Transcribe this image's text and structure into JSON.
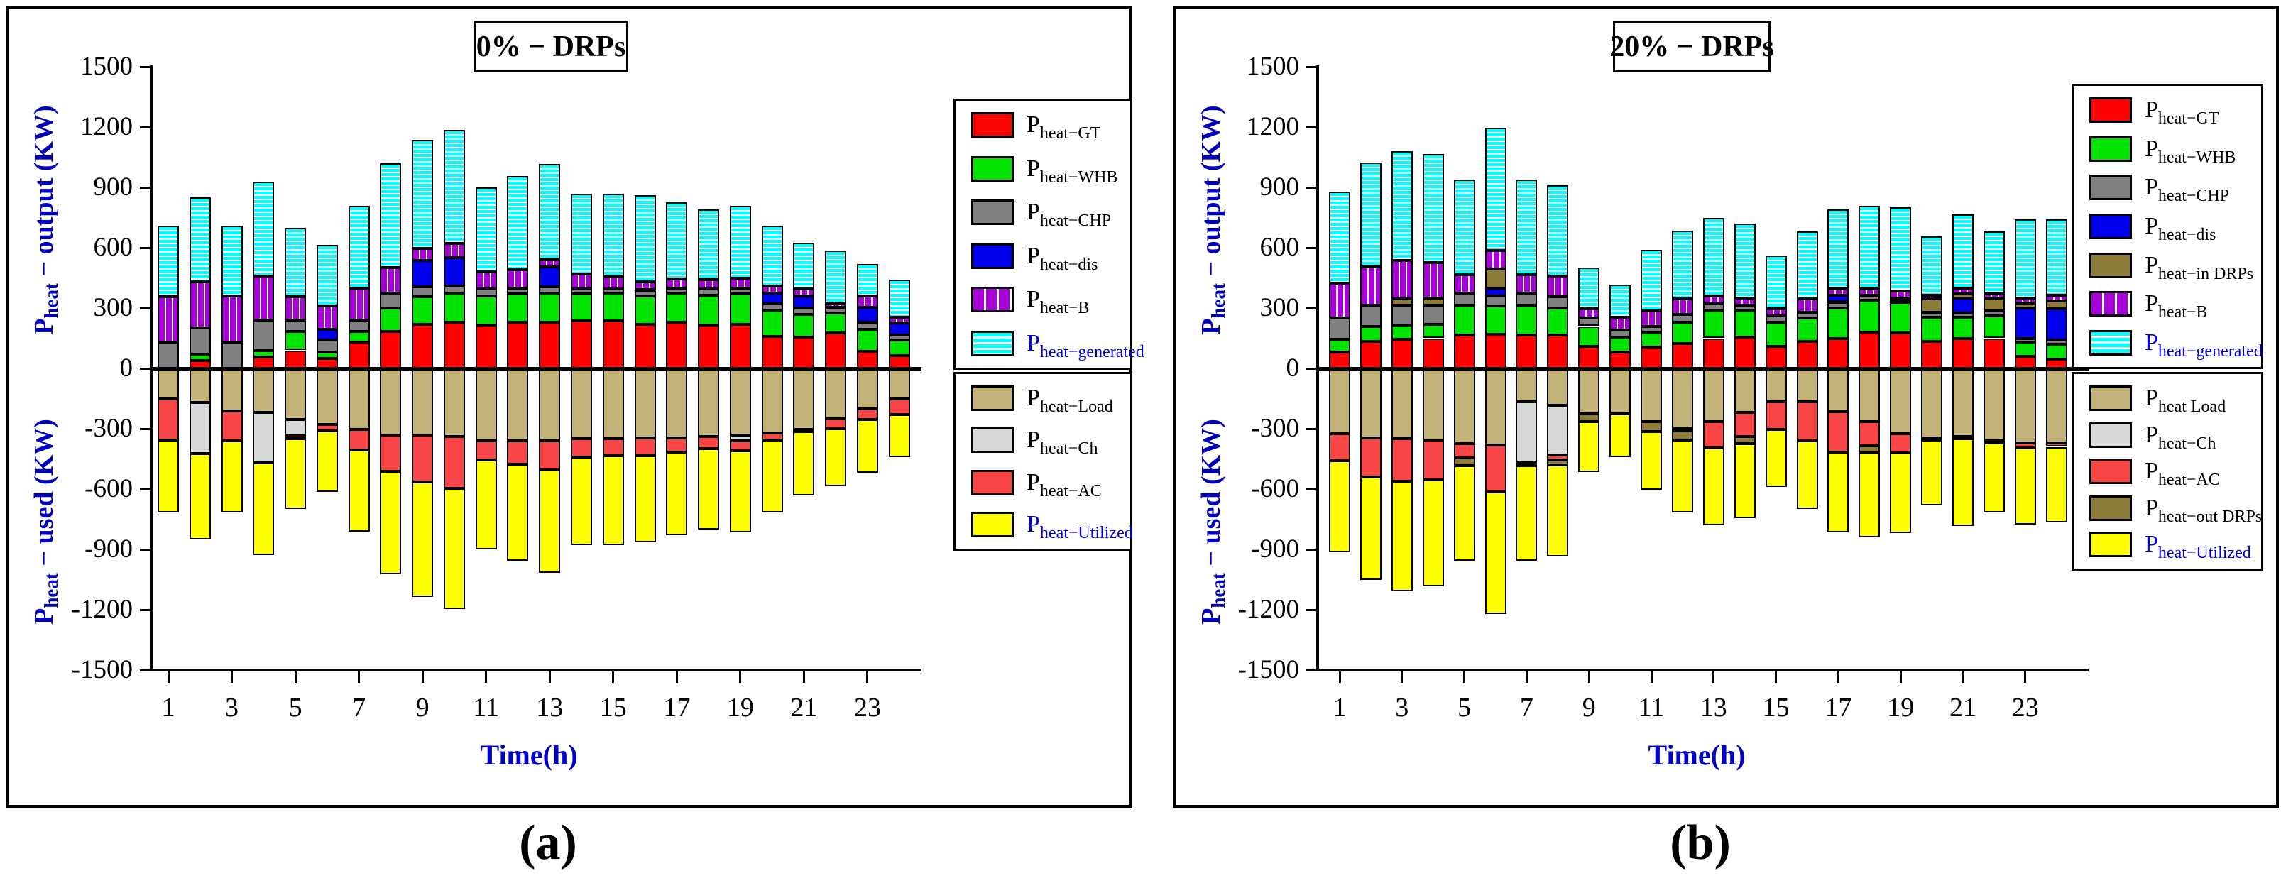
{
  "page": {
    "background": "#ffffff"
  },
  "chart_data": [
    {
      "id": "a",
      "type": "bar",
      "stacked": true,
      "title": {
        "text": "0% − DRP",
        "sub": "s"
      },
      "caption": "(a)",
      "xlabel": "Time(h)",
      "ylabel_output": {
        "main": "P",
        "sub": "heat",
        "rest": " − output (KW)"
      },
      "ylabel_used": {
        "main": "P",
        "sub": "heat",
        "rest": " − used (KW)"
      },
      "ylim": [
        -1500,
        1500
      ],
      "grid": false,
      "y_ticks": [
        1500,
        1200,
        900,
        600,
        300,
        0,
        -300,
        -600,
        -900,
        -1200,
        -1500
      ],
      "x_ticks": [
        1,
        3,
        5,
        7,
        9,
        11,
        13,
        15,
        17,
        19,
        21,
        23
      ],
      "hours": [
        1,
        2,
        3,
        4,
        5,
        6,
        7,
        8,
        9,
        10,
        11,
        12,
        13,
        14,
        15,
        16,
        17,
        18,
        19,
        20,
        21,
        22,
        23,
        24
      ],
      "positive_series": [
        {
          "key": "GT",
          "sub": "heat−GT",
          "color": "#ff0000",
          "pattern": "solid",
          "label_color": "#000000",
          "values": [
            0,
            40,
            0,
            55,
            90,
            50,
            130,
            185,
            220,
            230,
            215,
            230,
            230,
            235,
            235,
            220,
            230,
            215,
            220,
            160,
            155,
            175,
            85,
            65
          ]
        },
        {
          "key": "WHB",
          "sub": "heat−WHB",
          "color": "#00e400",
          "pattern": "solid",
          "label_color": "#000000",
          "values": [
            0,
            30,
            0,
            35,
            95,
            30,
            55,
            115,
            135,
            145,
            145,
            140,
            145,
            135,
            140,
            140,
            145,
            150,
            150,
            130,
            115,
            100,
            110,
            75
          ]
        },
        {
          "key": "CHP",
          "sub": "heat−CHP",
          "color": "#808080",
          "pattern": "solid",
          "label_color": "#000000",
          "values": [
            130,
            130,
            130,
            150,
            55,
            60,
            55,
            75,
            50,
            35,
            35,
            30,
            30,
            25,
            20,
            30,
            25,
            30,
            30,
            30,
            30,
            30,
            35,
            25
          ]
        },
        {
          "key": "dis",
          "sub": "heat−dis",
          "color": "#0000f0",
          "pattern": "solid",
          "label_color": "#000000",
          "values": [
            0,
            0,
            0,
            0,
            0,
            55,
            0,
            0,
            130,
            140,
            0,
            0,
            100,
            0,
            0,
            0,
            0,
            0,
            0,
            55,
            60,
            0,
            75,
            60
          ]
        },
        {
          "key": "B",
          "sub": "heat−B",
          "color": "#a800d8",
          "pattern": "vlines",
          "label_color": "#000000",
          "values": [
            225,
            230,
            230,
            220,
            115,
            115,
            160,
            125,
            60,
            70,
            85,
            90,
            35,
            75,
            60,
            40,
            45,
            45,
            50,
            35,
            35,
            15,
            55,
            30
          ]
        },
        {
          "key": "generated",
          "sub": "heat−generated",
          "color": "#00ffff",
          "pattern": "hlines",
          "label_color": "#0000dd",
          "values": [
            355,
            420,
            350,
            470,
            345,
            305,
            410,
            520,
            540,
            565,
            420,
            465,
            475,
            400,
            415,
            430,
            380,
            350,
            360,
            300,
            230,
            265,
            160,
            185
          ]
        }
      ],
      "negative_series": [
        {
          "key": "Load",
          "sub": "heat−Load",
          "color": "#c4b378",
          "pattern": "solid",
          "label_color": "#000000",
          "values": [
            -150,
            -170,
            -210,
            -220,
            -255,
            -280,
            -305,
            -330,
            -330,
            -340,
            -360,
            -360,
            -360,
            -350,
            -350,
            -345,
            -345,
            -340,
            -330,
            -320,
            -305,
            -250,
            -200,
            -150
          ]
        },
        {
          "key": "Ch",
          "sub": "heat−Ch",
          "color": "#d8d8d8",
          "pattern": "solid",
          "label_color": "#000000",
          "values": [
            0,
            -255,
            0,
            -250,
            -75,
            0,
            0,
            0,
            0,
            0,
            0,
            0,
            0,
            0,
            0,
            0,
            0,
            0,
            -30,
            0,
            0,
            0,
            0,
            0
          ]
        },
        {
          "key": "AC",
          "sub": "heat−AC",
          "color": "#f94545",
          "pattern": "solid",
          "label_color": "#000000",
          "values": [
            -205,
            0,
            -150,
            0,
            -20,
            -30,
            -100,
            -180,
            -235,
            -255,
            -95,
            -115,
            -145,
            -90,
            -85,
            -90,
            -70,
            -60,
            -50,
            -35,
            -10,
            -50,
            -55,
            -80
          ]
        },
        {
          "key": "Utilized",
          "sub": "heat−Utilized",
          "color": "#ffff00",
          "pattern": "solid",
          "label_color": "#0000dd",
          "values": [
            -360,
            -425,
            -355,
            -460,
            -350,
            -305,
            -405,
            -515,
            -570,
            -600,
            -445,
            -480,
            -510,
            -440,
            -445,
            -430,
            -415,
            -400,
            -405,
            -360,
            -315,
            -285,
            -265,
            -210
          ]
        }
      ]
    },
    {
      "id": "b",
      "type": "bar",
      "stacked": true,
      "title": {
        "text": "20% − DRP",
        "sub": "s"
      },
      "caption": "(b)",
      "xlabel": "Time(h)",
      "ylabel_output": {
        "main": "P",
        "sub": "heat",
        "rest": " − output (KW)"
      },
      "ylabel_used": {
        "main": "P",
        "sub": "heat",
        "rest": " − used (KW)"
      },
      "ylim": [
        -1500,
        1500
      ],
      "grid": false,
      "y_ticks": [
        1500,
        1200,
        900,
        600,
        300,
        0,
        -300,
        -600,
        -900,
        -1200,
        -1500
      ],
      "x_ticks": [
        1,
        3,
        5,
        7,
        9,
        11,
        13,
        15,
        17,
        19,
        21,
        23
      ],
      "hours": [
        1,
        2,
        3,
        4,
        5,
        6,
        7,
        8,
        9,
        10,
        11,
        12,
        13,
        14,
        15,
        16,
        17,
        18,
        19,
        20,
        21,
        22,
        23,
        24
      ],
      "positive_series": [
        {
          "key": "GT",
          "sub": "heat−GT",
          "color": "#ff0000",
          "pattern": "solid",
          "label_color": "#000000",
          "values": [
            80,
            135,
            145,
            150,
            165,
            170,
            165,
            165,
            110,
            80,
            105,
            125,
            150,
            155,
            110,
            135,
            150,
            180,
            175,
            135,
            150,
            150,
            60,
            45
          ]
        },
        {
          "key": "WHB",
          "sub": "heat−WHB",
          "color": "#00e400",
          "pattern": "solid",
          "label_color": "#000000",
          "values": [
            65,
            75,
            70,
            70,
            150,
            140,
            150,
            135,
            100,
            75,
            75,
            105,
            140,
            135,
            120,
            115,
            150,
            160,
            155,
            120,
            105,
            110,
            70,
            75
          ]
        },
        {
          "key": "CHP",
          "sub": "heat−CHP",
          "color": "#808080",
          "pattern": "solid",
          "label_color": "#000000",
          "values": [
            105,
            105,
            100,
            95,
            60,
            50,
            60,
            55,
            40,
            35,
            30,
            40,
            30,
            25,
            30,
            30,
            30,
            25,
            20,
            25,
            20,
            25,
            20,
            20
          ]
        },
        {
          "key": "dis",
          "sub": "heat−dis",
          "color": "#0000f0",
          "pattern": "solid",
          "label_color": "#000000",
          "values": [
            0,
            0,
            0,
            0,
            0,
            40,
            0,
            0,
            0,
            0,
            0,
            0,
            0,
            0,
            0,
            0,
            35,
            0,
            0,
            0,
            75,
            0,
            150,
            155
          ]
        },
        {
          "key": "inDRPs",
          "sub": "heat−in DRPs",
          "color": "#8e7d3a",
          "pattern": "solid",
          "label_color": "#000000",
          "values": [
            0,
            0,
            30,
            35,
            0,
            95,
            0,
            0,
            0,
            0,
            0,
            0,
            0,
            0,
            0,
            0,
            0,
            0,
            0,
            65,
            20,
            65,
            25,
            40
          ]
        },
        {
          "key": "B",
          "sub": "heat−B",
          "color": "#a800d8",
          "pattern": "vlines",
          "label_color": "#000000",
          "values": [
            175,
            190,
            190,
            175,
            90,
            90,
            90,
            105,
            45,
            65,
            75,
            75,
            40,
            35,
            35,
            65,
            30,
            30,
            35,
            20,
            30,
            20,
            25,
            30
          ]
        },
        {
          "key": "generated",
          "sub": "heat−generated",
          "color": "#00ffff",
          "pattern": "hlines",
          "label_color": "#0000dd",
          "values": [
            455,
            520,
            545,
            540,
            475,
            610,
            475,
            450,
            205,
            160,
            305,
            340,
            390,
            370,
            265,
            335,
            395,
            415,
            415,
            290,
            365,
            310,
            390,
            375
          ]
        }
      ],
      "negative_series": [
        {
          "key": "Load",
          "sub": "heat Load",
          "color": "#c4b378",
          "pattern": "solid",
          "label_color": "#000000",
          "values": [
            -325,
            -345,
            -350,
            -355,
            -375,
            -380,
            -165,
            -185,
            -225,
            -225,
            -265,
            -300,
            -265,
            -220,
            -165,
            -165,
            -215,
            -265,
            -325,
            -345,
            -340,
            -360,
            -370,
            -370
          ]
        },
        {
          "key": "Ch",
          "sub": "heat−Ch",
          "color": "#d8d8d8",
          "pattern": "solid",
          "label_color": "#000000",
          "values": [
            0,
            0,
            0,
            0,
            0,
            0,
            -300,
            -245,
            0,
            0,
            0,
            0,
            0,
            0,
            0,
            0,
            0,
            0,
            0,
            0,
            0,
            0,
            0,
            0
          ]
        },
        {
          "key": "AC",
          "sub": "heat−AC",
          "color": "#f94545",
          "pattern": "solid",
          "label_color": "#000000",
          "values": [
            -135,
            -195,
            -210,
            -200,
            -70,
            -235,
            0,
            -25,
            0,
            0,
            0,
            -10,
            -130,
            -120,
            -140,
            -195,
            -200,
            -120,
            -95,
            -10,
            -10,
            -10,
            -25,
            -20
          ]
        },
        {
          "key": "outDRPs",
          "sub": "heat−out DRPs",
          "color": "#8e7d3a",
          "pattern": "solid",
          "label_color": "#000000",
          "values": [
            0,
            0,
            0,
            0,
            -40,
            0,
            -20,
            -25,
            -40,
            0,
            -50,
            -45,
            0,
            -35,
            0,
            0,
            0,
            -35,
            0,
            0,
            0,
            0,
            0,
            0
          ]
        },
        {
          "key": "Utilized",
          "sub": "heat−Utilized",
          "color": "#ffff00",
          "pattern": "solid",
          "label_color": "#0000dd",
          "values": [
            -455,
            -510,
            -550,
            -530,
            -470,
            -605,
            -470,
            -455,
            -250,
            -215,
            -290,
            -360,
            -385,
            -370,
            -285,
            -340,
            -400,
            -420,
            -400,
            -325,
            -435,
            -345,
            -380,
            -375
          ]
        }
      ]
    }
  ]
}
